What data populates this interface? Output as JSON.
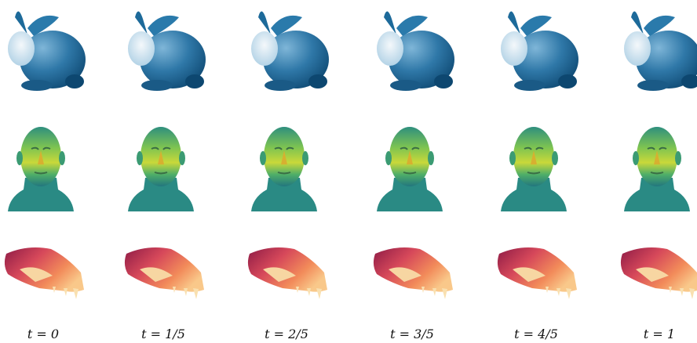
{
  "figure": {
    "labels": [
      "t = 0",
      "t = 1/5",
      "t = 2/5",
      "t = 3/5",
      "t = 4/5",
      "t = 1"
    ]
  }
}
